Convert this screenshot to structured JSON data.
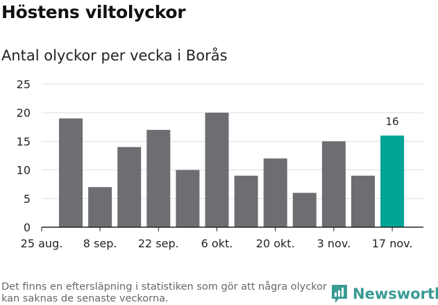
{
  "title": "Höstens viltolyckor",
  "subtitle": "Antal olyckor per vecka i Borås",
  "footnote": "Det finns en eftersläpning i statistiken som gör att några olyckor kan saknas de senaste veckorna.",
  "logo": "Newsworthy",
  "colors": {
    "bar": "#6e6d72",
    "highlight": "#00a497",
    "logo": "#3a9a94"
  },
  "chart_data": {
    "type": "bar",
    "title": "Antal olyckor per vecka i Borås",
    "ylim": [
      0,
      25
    ],
    "yticks": [
      0,
      5,
      10,
      15,
      20,
      25
    ],
    "values": [
      19,
      7,
      14,
      17,
      10,
      20,
      9,
      12,
      6,
      15,
      9,
      16
    ],
    "xtick_labels": [
      "25 aug.",
      "8 sep.",
      "22 sep.",
      "6 okt.",
      "20 okt.",
      "3 nov.",
      "17 nov."
    ],
    "highlight_index": 11,
    "annotation": "16",
    "grid": true
  }
}
